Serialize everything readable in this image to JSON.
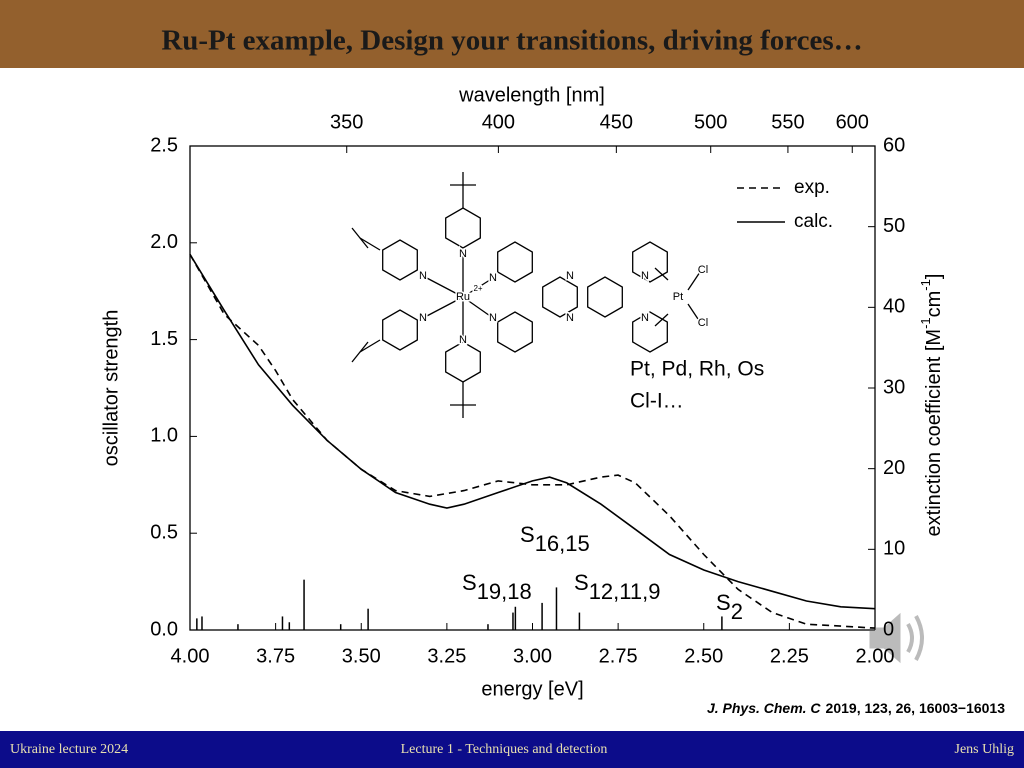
{
  "header": {
    "title": "Ru-Pt example, Design your transitions, driving forces…"
  },
  "footer": {
    "left": "Ukraine lecture 2024",
    "center": "Lecture 1 - Techniques and detection",
    "right": "Jens Uhlig"
  },
  "notes": [
    "Pt, Pd, Rh, Os",
    "Cl-I…"
  ],
  "citation": {
    "journal": "J. Phys. Chem. C",
    "rest": "2019, 123, 26, 16003−16013"
  },
  "structure": {
    "atoms": [
      "N",
      "N",
      "N",
      "N",
      "Ru",
      "2+",
      "N",
      "N",
      "N",
      "N",
      "N",
      "N",
      "Pt",
      "Cl",
      "Cl"
    ]
  },
  "chart_data": {
    "type": "line",
    "xlabel": "energy [eV]",
    "x2label": "wavelength [nm]",
    "ylabel": "oscillator strength",
    "y2label_parts": [
      "extinction coefficient [M",
      "-1",
      "cm",
      "-1",
      "]"
    ],
    "xlim": [
      4.0,
      2.0
    ],
    "xticks": [
      {
        "value": 4.0,
        "label": "4.00"
      },
      3.75,
      {
        "value": 3.5,
        "label": "3.50"
      },
      3.25,
      {
        "value": 3.0,
        "label": "3.00"
      },
      2.75,
      {
        "value": 2.5,
        "label": "2.50"
      },
      2.25,
      {
        "value": 2.0,
        "label": "2.00"
      }
    ],
    "x2ticks": [
      350,
      400,
      450,
      500,
      550,
      600
    ],
    "ylim": [
      0,
      2.5
    ],
    "yticks": [
      {
        "value": 0,
        "label": "0.0"
      },
      0.5,
      {
        "value": 1,
        "label": "1.0"
      },
      1.5,
      {
        "value": 2,
        "label": "2.0"
      },
      2.5
    ],
    "y2lim": [
      0,
      60
    ],
    "y2ticks": [
      0,
      10,
      20,
      30,
      40,
      50,
      60
    ],
    "legend": "upper right",
    "series": [
      {
        "name": "exp.",
        "color": "#000000",
        "style": "dashed",
        "x": [
          4.0,
          3.9,
          3.8,
          3.75,
          3.7,
          3.6,
          3.5,
          3.4,
          3.3,
          3.2,
          3.1,
          3.0,
          2.9,
          2.8,
          2.75,
          2.7,
          2.6,
          2.5,
          2.4,
          2.3,
          2.2,
          2.1,
          2.0
        ],
        "values": [
          1.94,
          1.63,
          1.47,
          1.34,
          1.19,
          0.98,
          0.83,
          0.72,
          0.69,
          0.72,
          0.77,
          0.75,
          0.75,
          0.79,
          0.8,
          0.76,
          0.59,
          0.39,
          0.21,
          0.09,
          0.03,
          0.02,
          0.01
        ]
      },
      {
        "name": "calc.",
        "color": "#000000",
        "style": "solid",
        "x": [
          4.0,
          3.9,
          3.8,
          3.7,
          3.6,
          3.5,
          3.4,
          3.3,
          3.25,
          3.2,
          3.1,
          3.0,
          2.95,
          2.9,
          2.8,
          2.7,
          2.6,
          2.5,
          2.4,
          2.3,
          2.2,
          2.1,
          2.0
        ],
        "values": [
          1.94,
          1.65,
          1.37,
          1.16,
          0.98,
          0.83,
          0.71,
          0.65,
          0.63,
          0.65,
          0.71,
          0.77,
          0.79,
          0.76,
          0.65,
          0.52,
          0.39,
          0.31,
          0.25,
          0.2,
          0.15,
          0.12,
          0.11
        ]
      },
      {
        "color": "#000000",
        "style": "stick",
        "x": [
          3.98,
          3.965,
          3.86,
          3.73,
          3.71,
          3.667,
          3.56,
          3.48,
          3.13,
          3.057,
          3.05,
          2.972,
          2.93,
          2.863,
          2.447
        ],
        "values": [
          0.06,
          0.07,
          0.03,
          0.07,
          0.04,
          0.26,
          0.03,
          0.11,
          0.03,
          0.09,
          0.12,
          0.14,
          0.22,
          0.09,
          0.07
        ]
      }
    ],
    "annotations": [
      {
        "label": "S",
        "sub": "16,15"
      },
      {
        "label": "S",
        "sub": "19,18"
      },
      {
        "label": "S",
        "sub": "12,11,9"
      },
      {
        "label": "S",
        "sub": "2"
      }
    ]
  }
}
